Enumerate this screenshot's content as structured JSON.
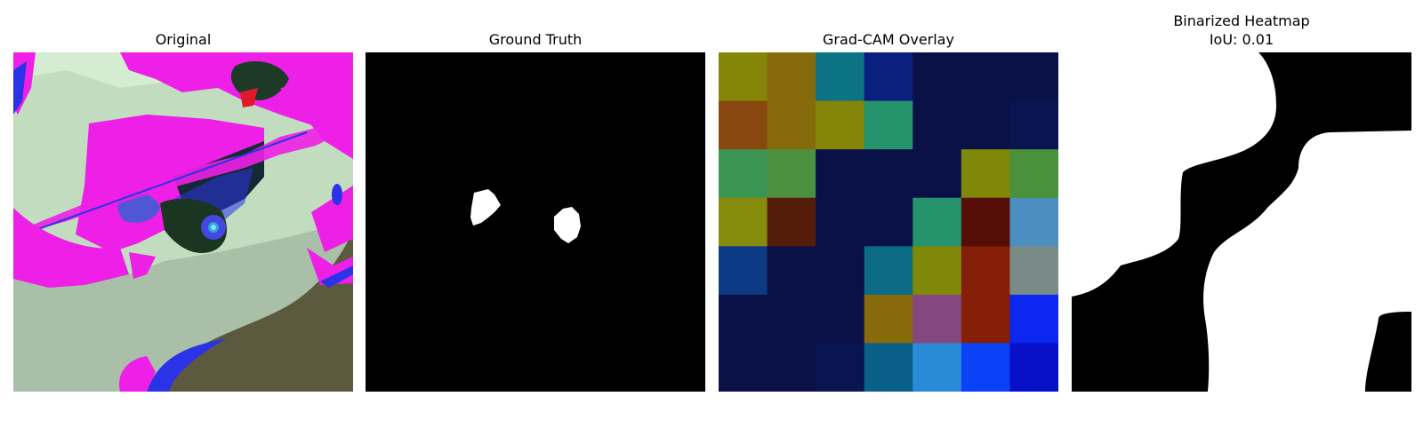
{
  "panels": [
    {
      "title": "Original",
      "image": "leaf-photo-false-color"
    },
    {
      "title": "Ground Truth",
      "image": "segmentation-mask"
    },
    {
      "title": "Grad-CAM Overlay",
      "image": "gradcam-heatmap-grid",
      "grid_colors": [
        [
          "#858508",
          "#876a0b",
          "#0b7383",
          "#0b1f7e",
          "#0a1147",
          "#0a1147",
          "#0a1147"
        ],
        [
          "#894810",
          "#876a0b",
          "#858508",
          "#25936b",
          "#0a1147",
          "#0a1147",
          "#0a1451"
        ],
        [
          "#3d9554",
          "#4b9140",
          "#0a1147",
          "#0a1147",
          "#0a1147",
          "#80880a",
          "#4a913b"
        ],
        [
          "#858b0b",
          "#551c0a",
          "#0a1147",
          "#0a1147",
          "#25936b",
          "#560f07",
          "#4a8fbf"
        ],
        [
          "#0c3a85",
          "#0a1147",
          "#0a1147",
          "#0b6a84",
          "#80880a",
          "#861f08",
          "#7a8a86"
        ],
        [
          "#0a1147",
          "#0a1147",
          "#0a1147",
          "#876a0b",
          "#844780",
          "#861f08",
          "#0b27f0"
        ],
        [
          "#0a1147",
          "#0a1147",
          "#0a1451",
          "#0a5f88",
          "#298bd6",
          "#0b42f8",
          "#0810c8"
        ]
      ]
    },
    {
      "title": "Binarized Heatmap",
      "subtitle": "IoU: 0.01",
      "image": "binarized-heatmap-mask"
    }
  ]
}
